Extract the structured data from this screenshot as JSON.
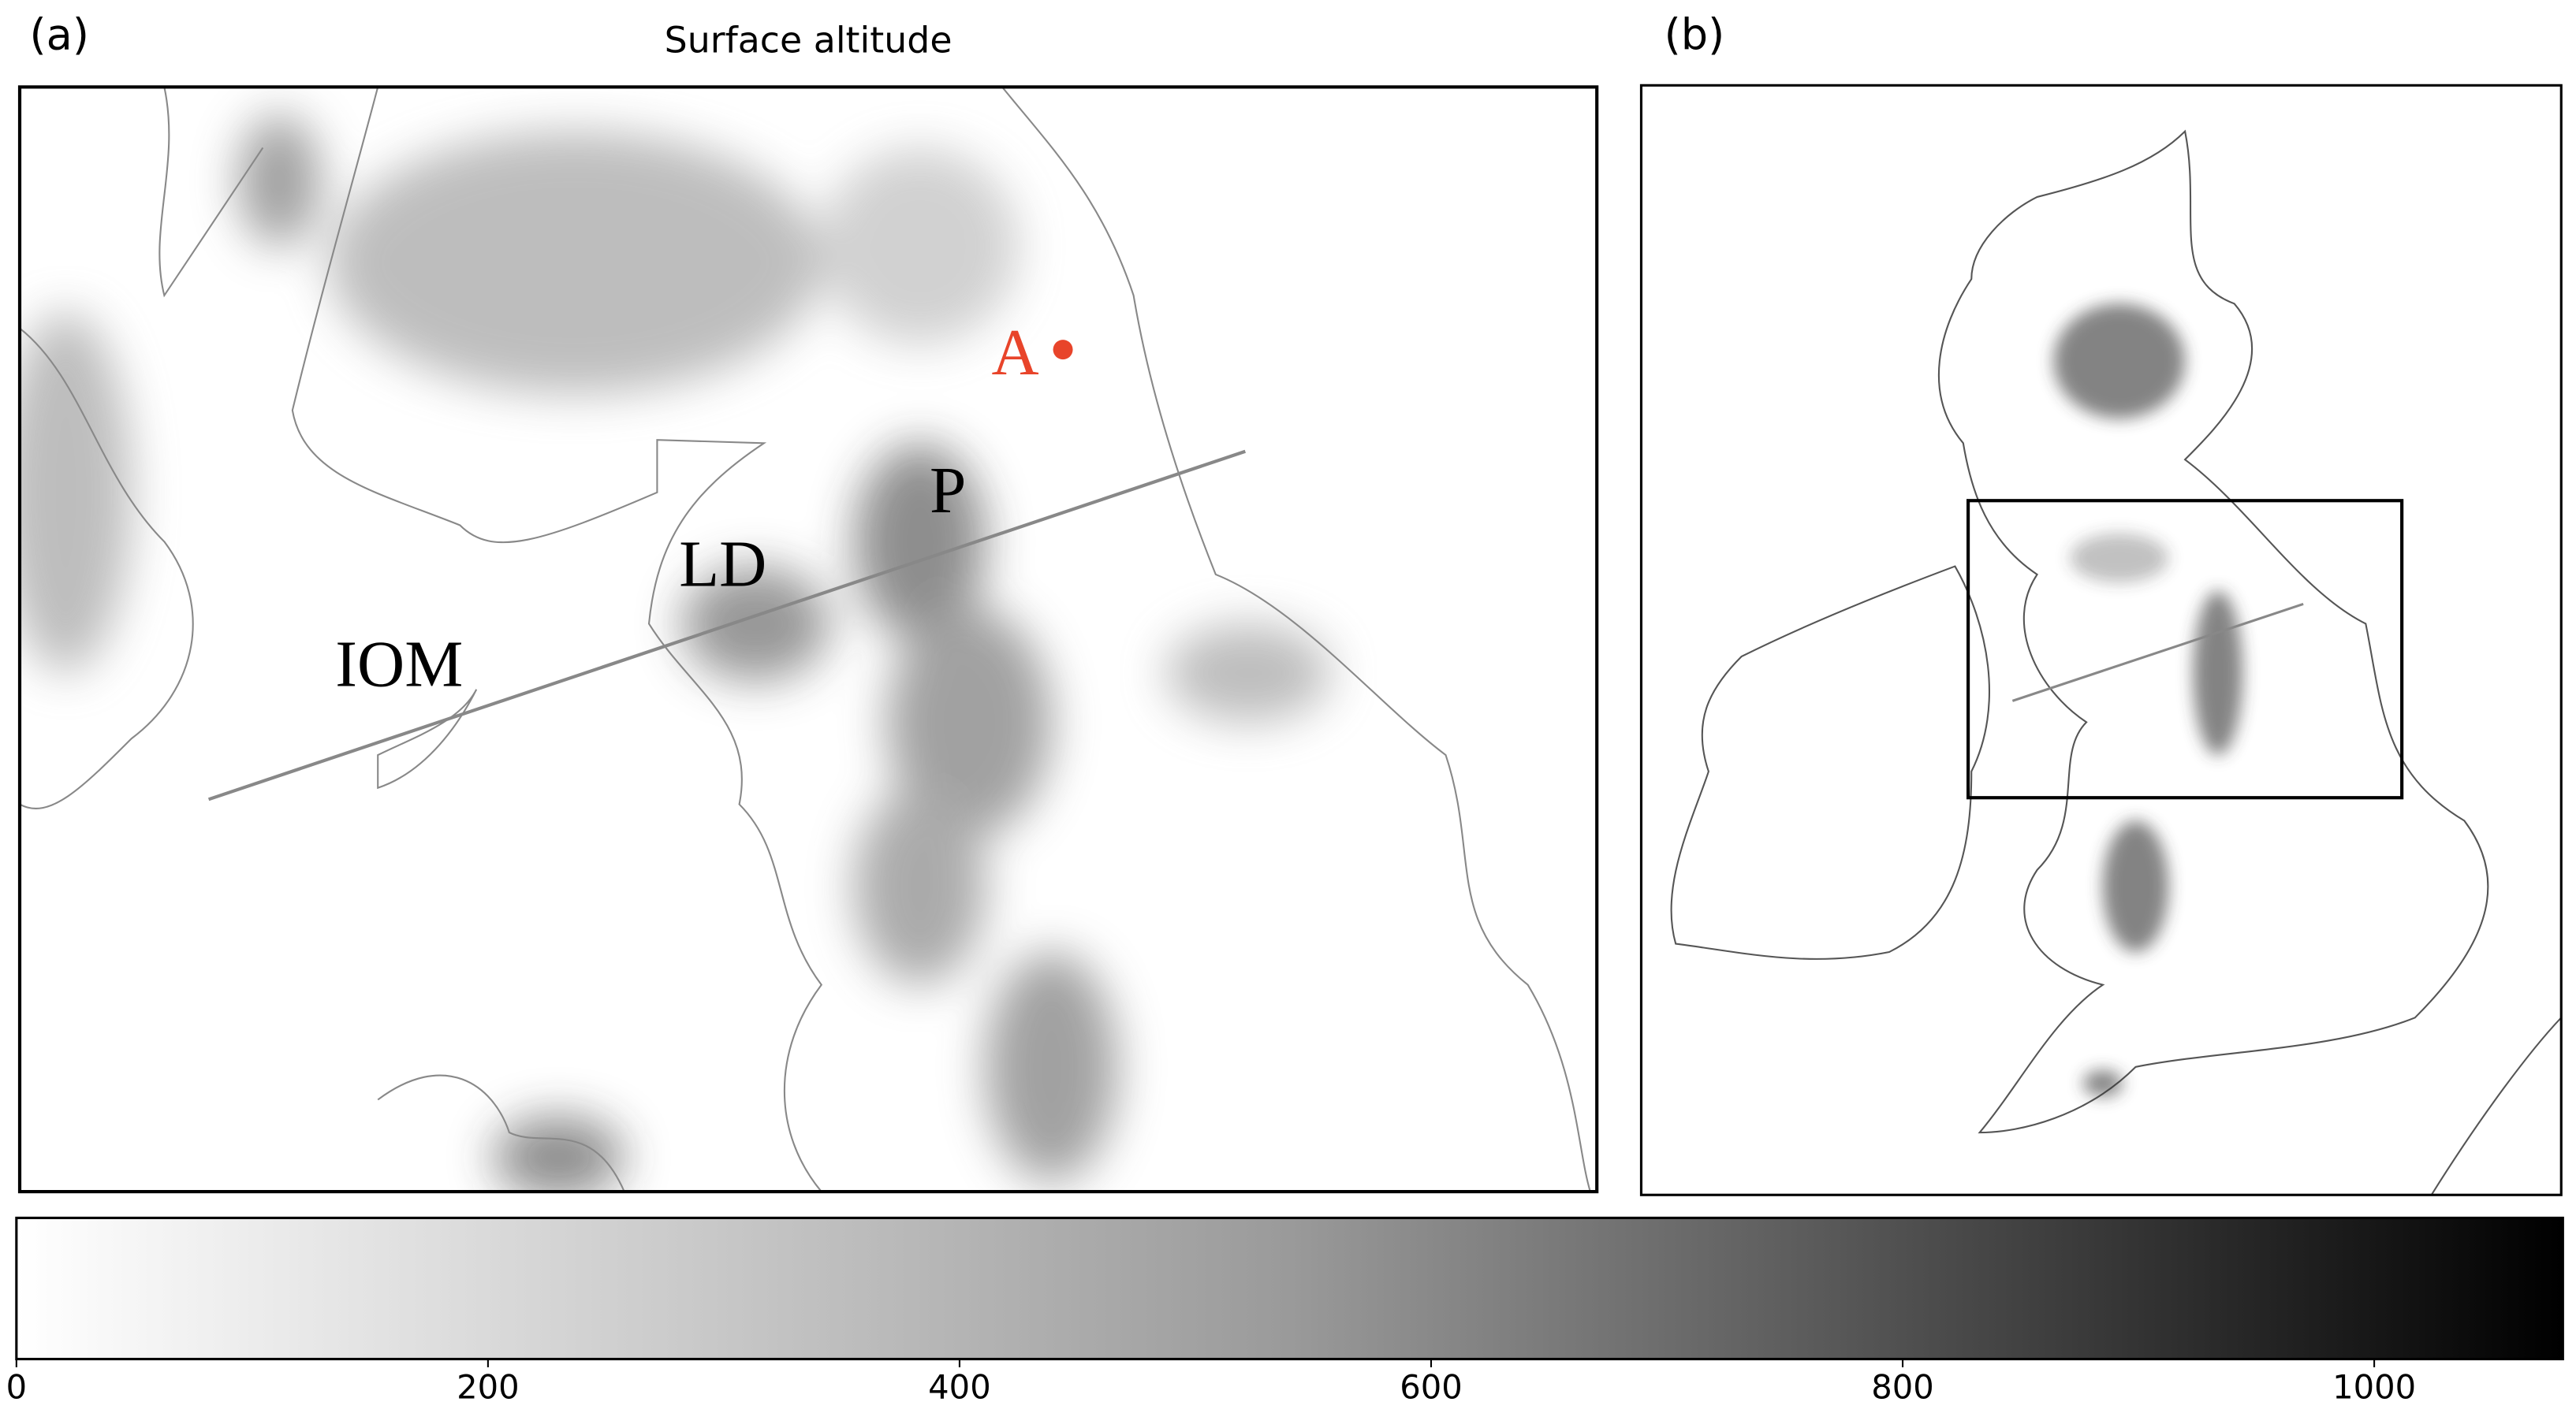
{
  "panel_a": {
    "label": "(a)",
    "title": "Surface altitude",
    "annotations": {
      "A": "A",
      "P": "P",
      "LD": "LD",
      "IOM": "IOM"
    }
  },
  "panel_b": {
    "label": "(b)"
  },
  "colorbar": {
    "lim": [
      0,
      1080
    ],
    "ticks": [
      0,
      200,
      400,
      600,
      800,
      1000
    ]
  }
}
